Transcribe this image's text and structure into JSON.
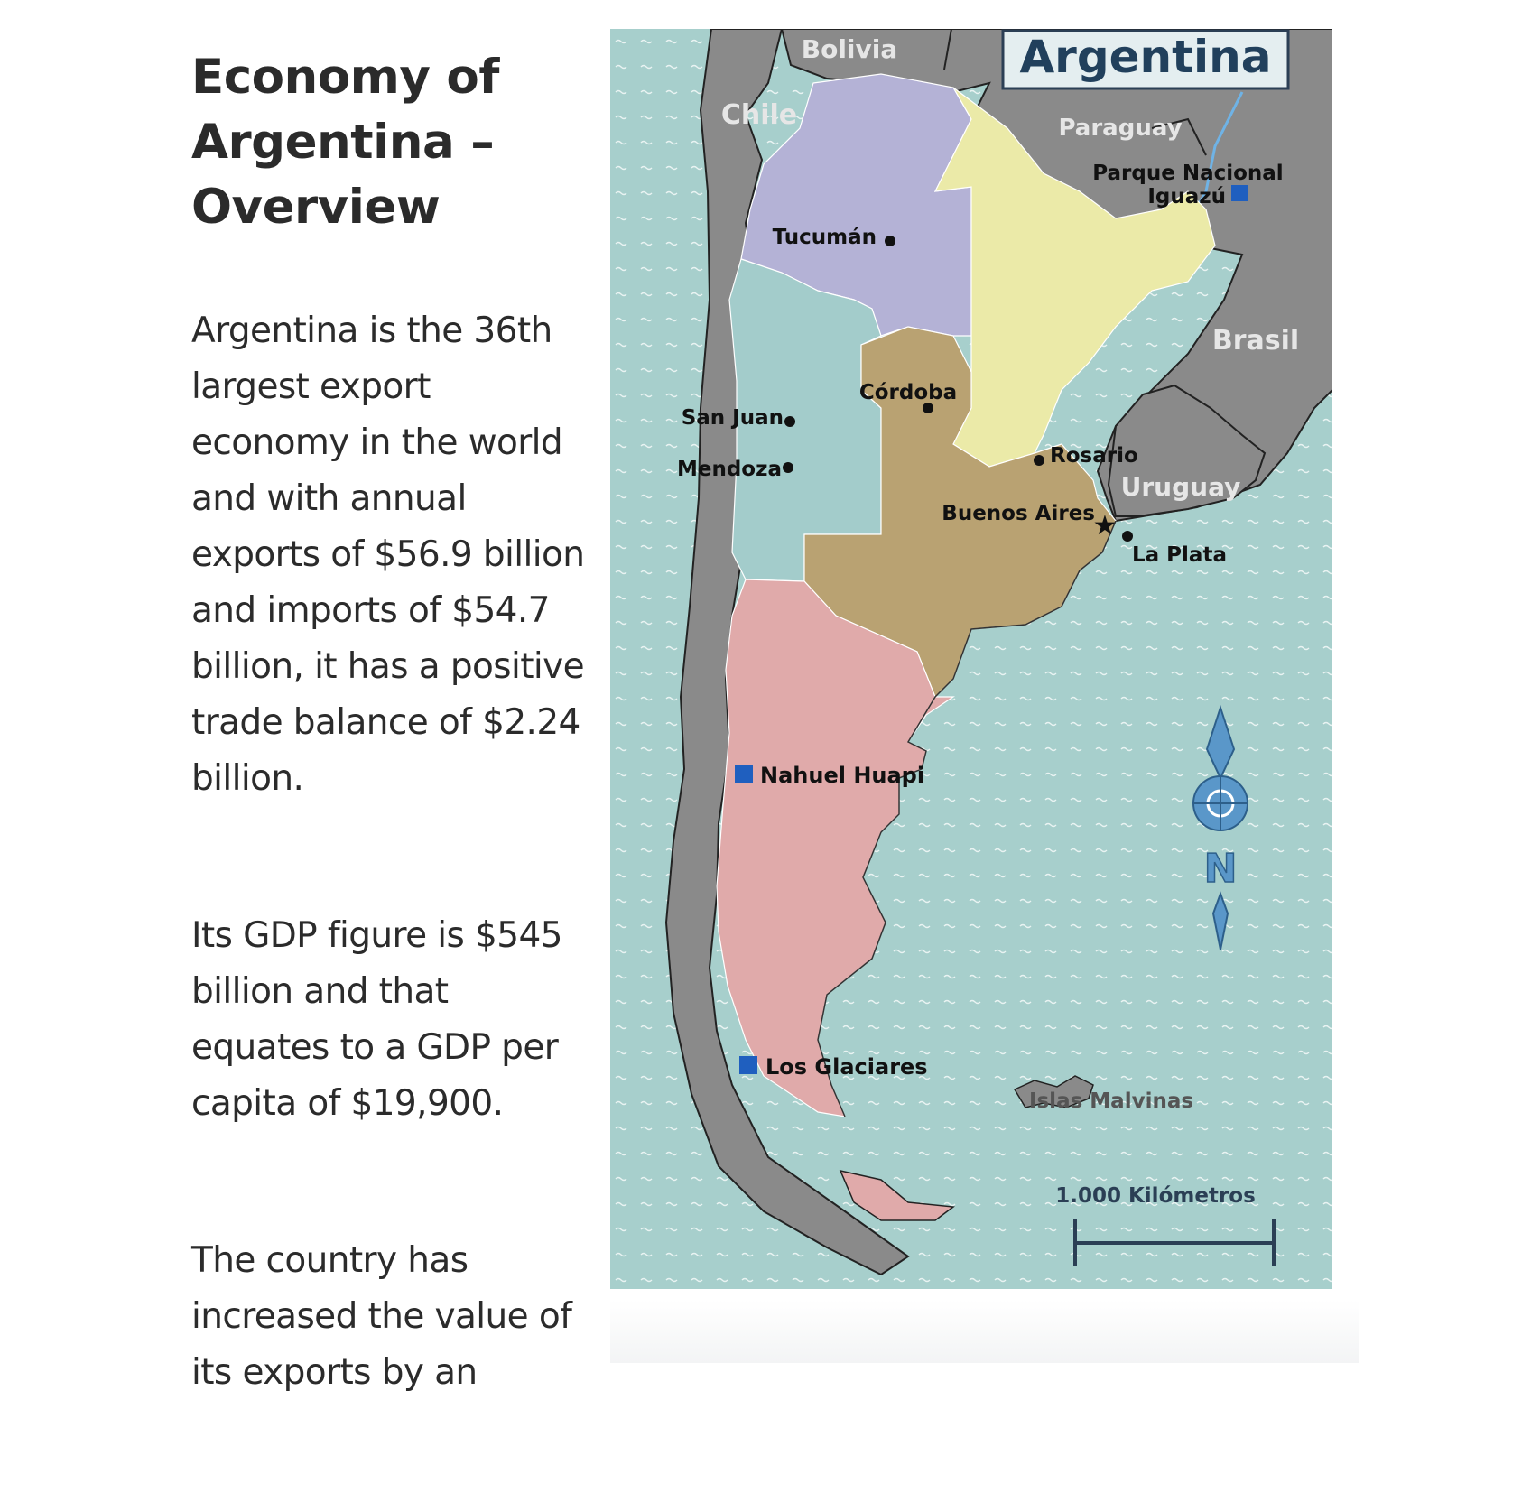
{
  "article": {
    "title_lines": [
      "Economy of",
      "Argentina –",
      "Overview"
    ],
    "paragraphs": [
      [
        "Argentina is the 36th",
        "largest export",
        "economy in the world",
        "and with annual",
        "exports of $56.9 billion",
        "and imports of $54.7",
        "billion, it has a positive",
        "trade balance of $2.24",
        "billion."
      ],
      [
        "Its GDP figure is $545",
        "billion and that",
        "equates to a GDP per",
        "capita of $19,900."
      ],
      [
        "The country has",
        "increased the value of",
        "its exports by an"
      ]
    ]
  },
  "map": {
    "title": "Argentina",
    "countries": {
      "bolivia": "Bolivia",
      "chile": "Chile",
      "paraguay": "Paraguay",
      "brasil": "Brasil",
      "uruguay": "Uruguay"
    },
    "cities": {
      "tucuman": "Tucumán",
      "san_juan": "San Juan",
      "mendoza": "Mendoza",
      "cordoba": "Córdoba",
      "rosario": "Rosario",
      "buenos_aires": "Buenos Aires",
      "la_plata": "La Plata"
    },
    "parks": {
      "iguazu_line1": "Parque Nacional",
      "iguazu_line2": "Iguazú",
      "nahuel_huapi": "Nahuel Huapi",
      "los_glaciares": "Los Glaciares"
    },
    "islands": "Islas Malvinas",
    "scale_label": "1.000 Kilómetros",
    "compass_letter": "N",
    "colors": {
      "ocean": "#a7cfcc",
      "neighbor": "#8a8a8a",
      "northwest": "#b4b2d6",
      "northeast": "#ebeaa8",
      "cuyo": "#a3cccb",
      "pampas": "#b9a272",
      "patagonia": "#e0aaaa",
      "park": "#1f5fbf",
      "compass": "#5a97c9"
    }
  }
}
